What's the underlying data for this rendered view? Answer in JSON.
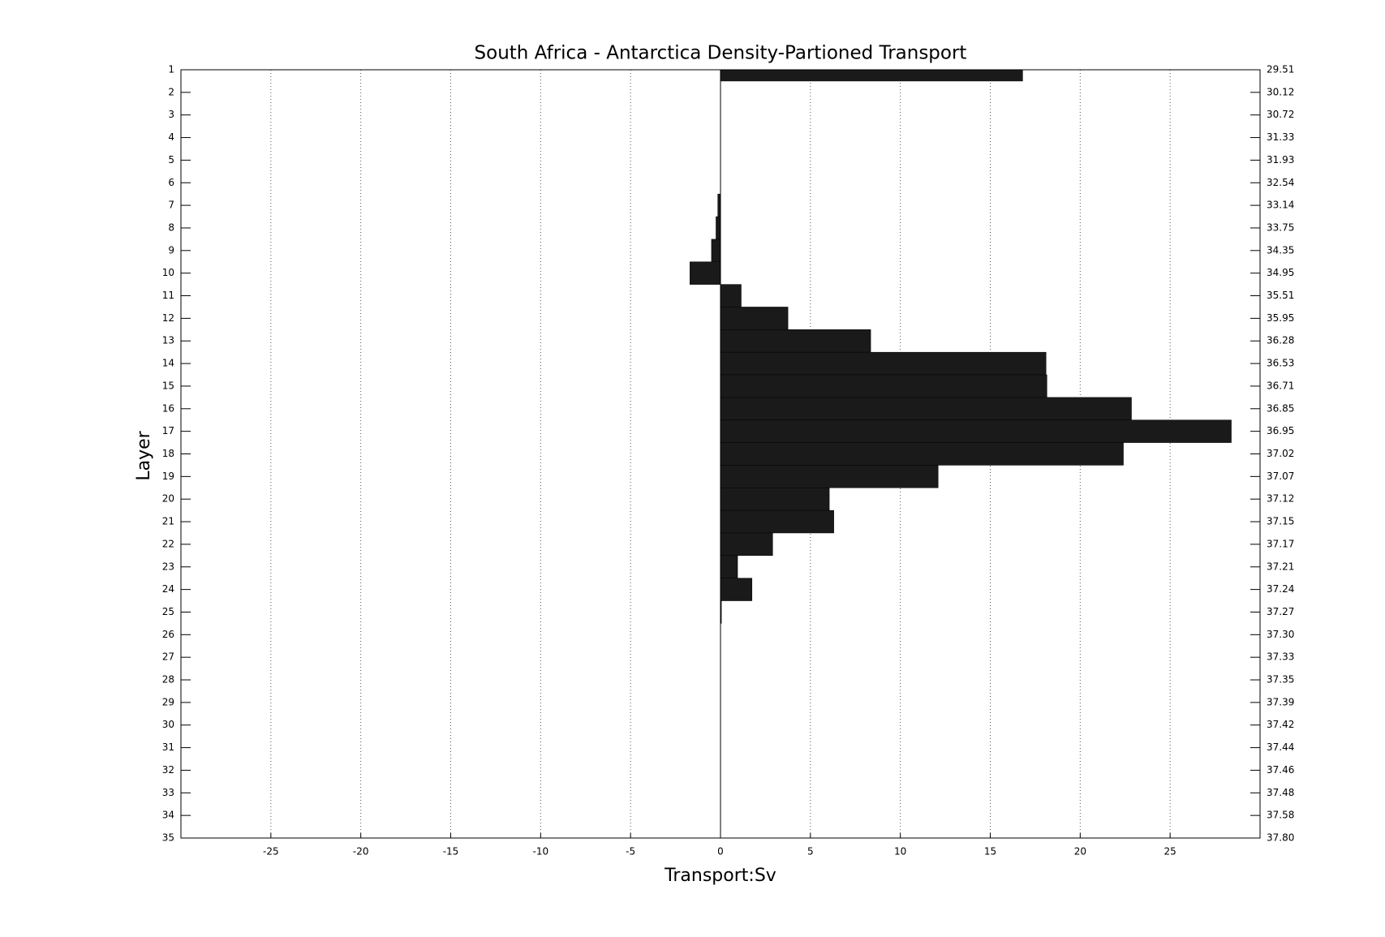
{
  "chart_data": {
    "type": "barh",
    "title": "South Africa - Antarctica Density-Partioned Transport",
    "x_label": "Transport:Sv",
    "y_label": "Layer",
    "y": [
      1,
      2,
      3,
      4,
      5,
      6,
      7,
      8,
      9,
      10,
      11,
      12,
      13,
      14,
      15,
      16,
      17,
      18,
      19,
      20,
      21,
      22,
      23,
      24,
      25,
      26,
      27,
      28,
      29,
      30,
      31,
      32,
      33,
      34,
      35
    ],
    "values": [
      16.8,
      0,
      0,
      0,
      0,
      0,
      -0.15,
      -0.25,
      -0.5,
      -1.7,
      1.15,
      3.75,
      8.35,
      18.1,
      18.15,
      22.85,
      28.4,
      22.4,
      12.1,
      6.05,
      6.3,
      2.9,
      0.95,
      1.75,
      0.05,
      0,
      0,
      0,
      0,
      0,
      0,
      0,
      0,
      0,
      0
    ],
    "color": "#1a1a1a",
    "xlim": [
      -30,
      30
    ],
    "xticks": [
      -25,
      -20,
      -15,
      -10,
      -5,
      0,
      5,
      10,
      15,
      20,
      25
    ],
    "ylim": [
      1,
      35
    ],
    "yticks": [
      1,
      2,
      3,
      4,
      5,
      6,
      7,
      8,
      9,
      10,
      11,
      12,
      13,
      14,
      15,
      16,
      17,
      18,
      19,
      20,
      21,
      22,
      23,
      24,
      25,
      26,
      27,
      28,
      29,
      30,
      31,
      32,
      33,
      34,
      35
    ],
    "y2ticks": [
      {
        "value": 1,
        "label": "29.51"
      },
      {
        "value": 2,
        "label": "30.12"
      },
      {
        "value": 3,
        "label": "30.72"
      },
      {
        "value": 4,
        "label": "31.33"
      },
      {
        "value": 5,
        "label": "31.93"
      },
      {
        "value": 6,
        "label": "32.54"
      },
      {
        "value": 7,
        "label": "33.14"
      },
      {
        "value": 8,
        "label": "33.75"
      },
      {
        "value": 9,
        "label": "34.35"
      },
      {
        "value": 10,
        "label": "34.95"
      },
      {
        "value": 11,
        "label": "35.51"
      },
      {
        "value": 12,
        "label": "35.95"
      },
      {
        "value": 13,
        "label": "36.28"
      },
      {
        "value": 14,
        "label": "36.53"
      },
      {
        "value": 15,
        "label": "36.71"
      },
      {
        "value": 16,
        "label": "36.85"
      },
      {
        "value": 17,
        "label": "36.95"
      },
      {
        "value": 18,
        "label": "37.02"
      },
      {
        "value": 19,
        "label": "37.07"
      },
      {
        "value": 20,
        "label": "37.12"
      },
      {
        "value": 21,
        "label": "37.15"
      },
      {
        "value": 22,
        "label": "37.17"
      },
      {
        "value": 23,
        "label": "37.21"
      },
      {
        "value": 24,
        "label": "37.24"
      },
      {
        "value": 25,
        "label": "37.27"
      },
      {
        "value": 26,
        "label": "37.30"
      },
      {
        "value": 27,
        "label": "37.33"
      },
      {
        "value": 28,
        "label": "37.35"
      },
      {
        "value": 29,
        "label": "37.39"
      },
      {
        "value": 30,
        "label": "37.42"
      },
      {
        "value": 31,
        "label": "37.44"
      },
      {
        "value": 32,
        "label": "37.46"
      },
      {
        "value": 33,
        "label": "37.48"
      },
      {
        "value": 34,
        "label": "37.58"
      },
      {
        "value": 35,
        "label": "37.80"
      }
    ],
    "grid": true
  }
}
